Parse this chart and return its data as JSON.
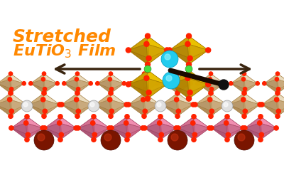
{
  "background_color": "#ffffff",
  "label_stretched": "Stretched",
  "label_film_main": "EuTiO",
  "label_film_sub": "3",
  "label_film_end": " Film",
  "label_color": "#ff8800",
  "label_fontsize": 16,
  "arrow_color": "#3a2510",
  "yellow_oct_bright": "#f8d400",
  "yellow_oct_mid": "#e8be00",
  "yellow_oct_dark": "#c89800",
  "yellow_oct_edge": "#a07800",
  "red_ball": "#ff2200",
  "green_ball": "#44dd44",
  "blue_ball": "#22ccee",
  "white_ball": "#e0e0e0",
  "dark_red_ball": "#7a1500",
  "pink_oct_bright": "#ffaacc",
  "pink_oct_mid": "#ee88aa",
  "pink_oct_dark": "#cc6688",
  "pink_oct_edge": "#aa4466",
  "cream_oct_bright": "#f8eedc",
  "cream_oct_mid": "#e8d8b8",
  "cream_oct_dark": "#cca870",
  "cream_oct_edge": "#aa8850",
  "figsize": [
    4.0,
    2.67
  ],
  "dpi": 100
}
